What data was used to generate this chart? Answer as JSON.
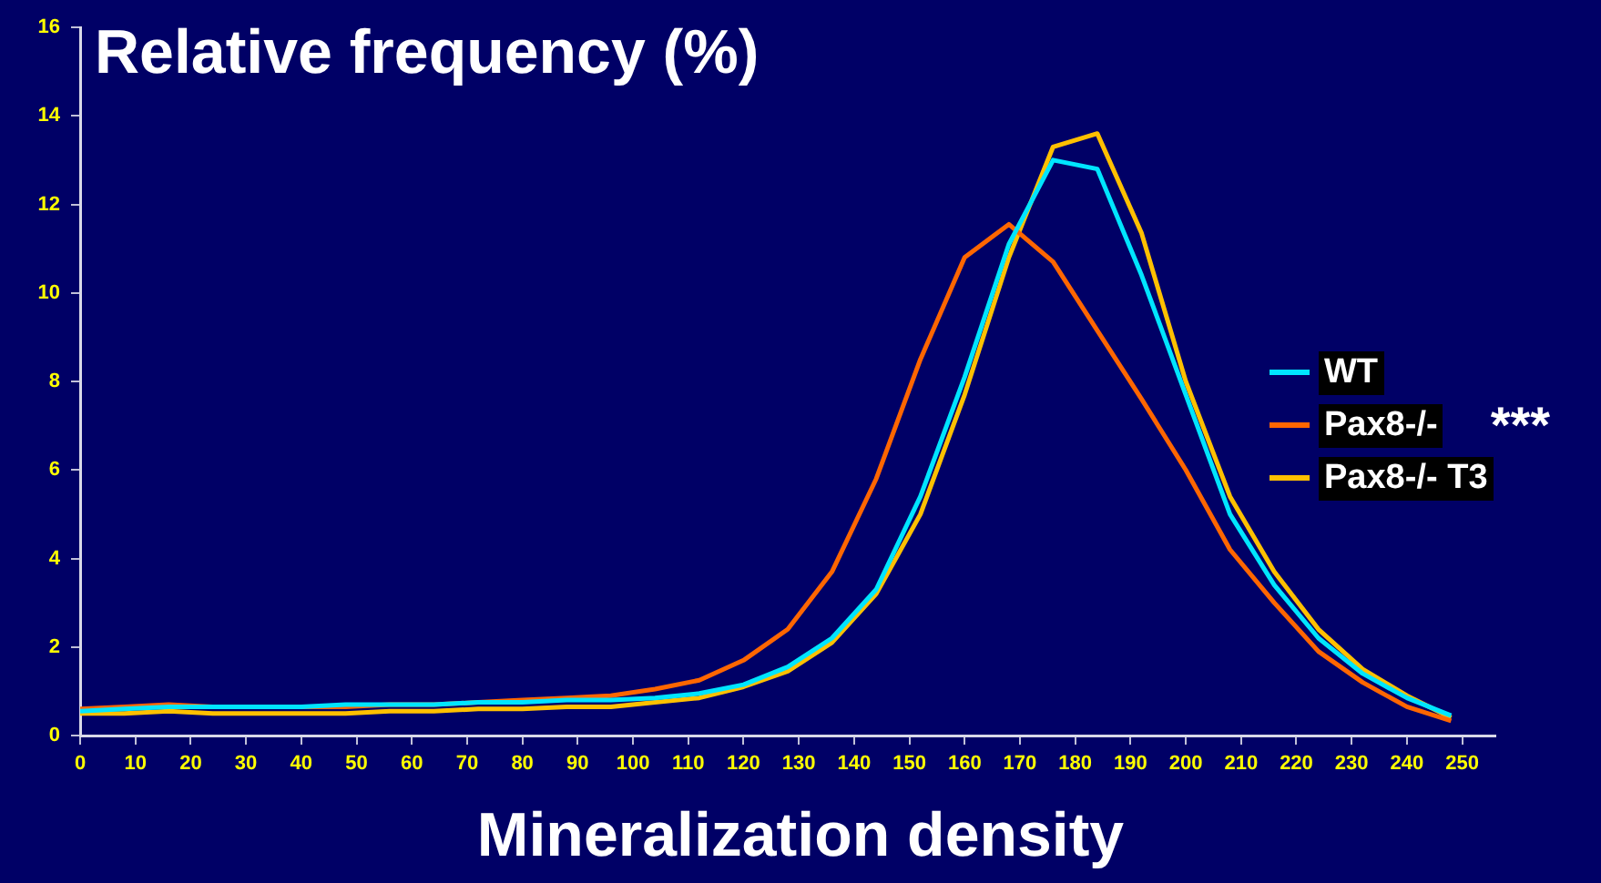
{
  "chart_data": {
    "type": "line",
    "ylabel": "Relative frequency (%)",
    "xlabel": "Mineralization density",
    "x": [
      0,
      8,
      16,
      24,
      32,
      40,
      48,
      56,
      64,
      72,
      80,
      88,
      96,
      104,
      112,
      120,
      128,
      136,
      144,
      152,
      160,
      168,
      176,
      184,
      192,
      200,
      208,
      216,
      224,
      232,
      240,
      248
    ],
    "series": [
      {
        "name": "WT",
        "color": "#00e5ff",
        "values": [
          0.55,
          0.6,
          0.65,
          0.65,
          0.65,
          0.65,
          0.7,
          0.7,
          0.7,
          0.75,
          0.75,
          0.8,
          0.8,
          0.85,
          0.95,
          1.15,
          1.55,
          2.2,
          3.3,
          5.4,
          8.1,
          11.1,
          13.0,
          12.8,
          10.4,
          7.7,
          5.0,
          3.4,
          2.2,
          1.4,
          0.85,
          0.45
        ]
      },
      {
        "name": "Pax8-/-",
        "color": "#ff6600",
        "values": [
          0.6,
          0.65,
          0.7,
          0.65,
          0.65,
          0.65,
          0.65,
          0.7,
          0.7,
          0.75,
          0.8,
          0.85,
          0.9,
          1.05,
          1.25,
          1.7,
          2.4,
          3.7,
          5.8,
          8.5,
          10.8,
          11.55,
          10.7,
          9.15,
          7.6,
          6.0,
          4.2,
          3.0,
          1.9,
          1.2,
          0.65,
          0.33
        ]
      },
      {
        "name": "Pax8-/- T3",
        "color": "#ffc000",
        "values": [
          0.5,
          0.5,
          0.55,
          0.5,
          0.5,
          0.5,
          0.5,
          0.55,
          0.55,
          0.6,
          0.6,
          0.65,
          0.65,
          0.75,
          0.85,
          1.1,
          1.45,
          2.1,
          3.2,
          5.0,
          7.7,
          10.8,
          13.3,
          13.6,
          11.35,
          8.0,
          5.4,
          3.7,
          2.4,
          1.5,
          0.9,
          0.4
        ]
      }
    ],
    "annotations": [
      "***"
    ],
    "xlim": [
      0,
      256
    ],
    "xticks": [
      0,
      10,
      20,
      30,
      40,
      50,
      60,
      70,
      80,
      90,
      100,
      110,
      120,
      130,
      140,
      150,
      160,
      170,
      180,
      190,
      200,
      210,
      220,
      230,
      240,
      250
    ],
    "ylim": [
      0,
      16
    ],
    "yticks": [
      0,
      2,
      4,
      6,
      8,
      10,
      12,
      14,
      16
    ],
    "grid": false,
    "legend": "right",
    "marker": "none",
    "line_style": "solid"
  }
}
